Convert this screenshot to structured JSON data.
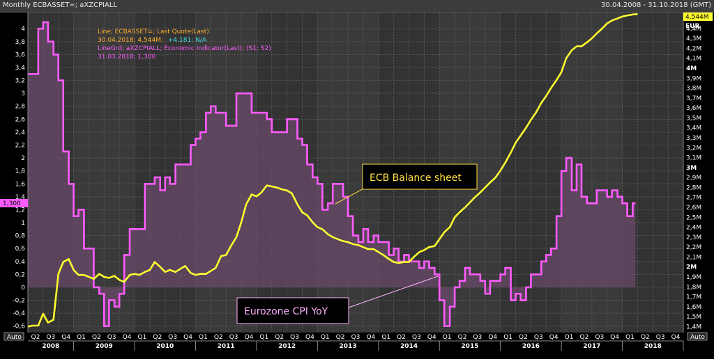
{
  "header": {
    "title": "Monthly ECBASSET=; aXZCPIALL",
    "date_range": "30.04.2008 - 31.10.2018 (GMT)"
  },
  "legend": {
    "line1": "Line; ECBASSET=; Last Quote(Last)",
    "line2_date": "30.04.2018; 4,544M;",
    "line2_change": "+4.181; N/A",
    "line3": "LineGrd; aXZCPIALL; Economic Indicator(Last); (S1; S2)",
    "line4": "31.03.2018; 1,300"
  },
  "badges": {
    "left_value": "1,300",
    "right_value": "4,544M",
    "right_unit": "EUR",
    "auto_left": "Auto",
    "auto_right": "Auto"
  },
  "annotations": {
    "ecb": "ECB Balance sheet",
    "cpi": "Eurozone CPI YoY"
  },
  "colors": {
    "background": "#000000",
    "plot_bg": "#3a3a3a",
    "band_dark": "#333333",
    "grid": "#5a5a5a",
    "cpi_line": "#ff5cff",
    "cpi_fill": "#6a4a6a",
    "ecb_line": "#ffff30",
    "legend_orange": "#ffb02e",
    "legend_cyan": "#40e0e0",
    "legend_magenta": "#ff5cff"
  },
  "chart_data": {
    "type": "line",
    "x_axis": {
      "quarters": [
        "Q2",
        "Q3",
        "Q4",
        "Q1",
        "Q2",
        "Q3",
        "Q4",
        "Q1",
        "Q2",
        "Q3",
        "Q4",
        "Q1",
        "Q2",
        "Q3",
        "Q4",
        "Q1",
        "Q2",
        "Q3",
        "Q4",
        "Q1",
        "Q2",
        "Q3",
        "Q4",
        "Q1",
        "Q2",
        "Q3",
        "Q4",
        "Q1",
        "Q2",
        "Q3",
        "Q4",
        "Q1",
        "Q2",
        "Q3",
        "Q4",
        "Q1",
        "Q2",
        "Q3",
        "Q4",
        "Q1",
        "Q2",
        "Q3",
        "Q4"
      ],
      "years": [
        "2008",
        "2009",
        "2010",
        "2011",
        "2012",
        "2013",
        "2014",
        "2015",
        "2016",
        "2017",
        "2018"
      ],
      "start": "2008-Q2",
      "end": "2018-Q4"
    },
    "left_axis": {
      "range": [
        -0.7,
        4.25
      ],
      "ticks": [
        "-0,6",
        "-0,4",
        "-0,2",
        "0",
        "0,2",
        "0,4",
        "0,6",
        "0,8",
        "1",
        "1,2",
        "1,4",
        "1,6",
        "1,8",
        "2",
        "2,2",
        "2,4",
        "2,6",
        "2,8",
        "3",
        "3,2",
        "3,4",
        "3,6",
        "3,8",
        "4"
      ],
      "tick_values": [
        -0.6,
        -0.4,
        -0.2,
        0,
        0.2,
        0.4,
        0.6,
        0.8,
        1,
        1.2,
        1.4,
        1.6,
        1.8,
        2,
        2.2,
        2.4,
        2.6,
        2.8,
        3,
        3.2,
        3.4,
        3.6,
        3.8,
        4
      ]
    },
    "right_axis": {
      "unit": "EUR",
      "range": [
        1.34,
        4.56
      ],
      "ticks": [
        "1,4M",
        "1,5M",
        "1,6M",
        "1,7M",
        "1,8M",
        "1,9M",
        "2M",
        "2,1M",
        "2,2M",
        "2,3M",
        "2,4M",
        "2,5M",
        "2,6M",
        "2,7M",
        "2,8M",
        "2,9M",
        "3M",
        "3,1M",
        "3,2M",
        "3,3M",
        "3,4M",
        "3,5M",
        "3,6M",
        "3,7M",
        "3,8M",
        "3,9M",
        "4M",
        "4,1M",
        "4,2M",
        "4,3M",
        "4,4M"
      ],
      "tick_values": [
        1.4,
        1.5,
        1.6,
        1.7,
        1.8,
        1.9,
        2.0,
        2.1,
        2.2,
        2.3,
        2.4,
        2.5,
        2.6,
        2.7,
        2.8,
        2.9,
        3.0,
        3.1,
        3.2,
        3.3,
        3.4,
        3.5,
        3.6,
        3.7,
        3.8,
        3.9,
        4.0,
        4.1,
        4.2,
        4.3,
        4.4
      ],
      "bold_ticks": [
        "2M",
        "3M",
        "4M"
      ]
    },
    "series": [
      {
        "name": "Eurozone CPI YoY",
        "axis": "left",
        "style": "step-area",
        "t": [
          2008.25,
          2008.42,
          2008.5,
          2008.58,
          2008.67,
          2008.75,
          2008.83,
          2008.92,
          2009.0,
          2009.08,
          2009.17,
          2009.25,
          2009.33,
          2009.42,
          2009.5,
          2009.58,
          2009.67,
          2009.75,
          2009.83,
          2009.92,
          2010.0,
          2010.08,
          2010.17,
          2010.25,
          2010.33,
          2010.42,
          2010.5,
          2010.58,
          2010.67,
          2010.75,
          2010.83,
          2010.92,
          2011.0,
          2011.08,
          2011.17,
          2011.25,
          2011.33,
          2011.42,
          2011.5,
          2011.58,
          2011.67,
          2011.75,
          2011.83,
          2011.92,
          2012.0,
          2012.08,
          2012.17,
          2012.25,
          2012.33,
          2012.42,
          2012.5,
          2012.58,
          2012.67,
          2012.75,
          2012.83,
          2012.92,
          2013.0,
          2013.08,
          2013.17,
          2013.25,
          2013.33,
          2013.42,
          2013.5,
          2013.58,
          2013.67,
          2013.75,
          2013.83,
          2013.92,
          2014.0,
          2014.08,
          2014.17,
          2014.25,
          2014.33,
          2014.42,
          2014.5,
          2014.58,
          2014.67,
          2014.75,
          2014.83,
          2014.92,
          2015.0,
          2015.08,
          2015.17,
          2015.25,
          2015.33,
          2015.42,
          2015.5,
          2015.58,
          2015.67,
          2015.75,
          2015.83,
          2015.92,
          2016.0,
          2016.08,
          2016.17,
          2016.25,
          2016.33,
          2016.42,
          2016.5,
          2016.58,
          2016.67,
          2016.75,
          2016.83,
          2016.92,
          2017.0,
          2017.08,
          2017.17,
          2017.25,
          2017.33,
          2017.42,
          2017.5,
          2017.58,
          2017.67,
          2017.75,
          2017.83,
          2017.92,
          2018.0,
          2018.08,
          2018.17
        ],
        "values": [
          3.3,
          4.0,
          4.1,
          3.8,
          3.6,
          3.2,
          2.1,
          1.6,
          1.1,
          1.2,
          0.6,
          0.6,
          0.0,
          -0.1,
          -0.6,
          -0.2,
          -0.3,
          -0.1,
          0.5,
          0.9,
          0.9,
          0.9,
          1.6,
          1.6,
          1.7,
          1.5,
          1.7,
          1.6,
          1.9,
          1.9,
          1.9,
          2.2,
          2.3,
          2.4,
          2.7,
          2.8,
          2.7,
          2.7,
          2.5,
          2.5,
          3.0,
          3.0,
          3.0,
          2.7,
          2.7,
          2.7,
          2.6,
          2.4,
          2.4,
          2.4,
          2.6,
          2.6,
          2.3,
          2.2,
          1.9,
          1.7,
          1.6,
          1.2,
          1.3,
          1.6,
          1.6,
          1.4,
          1.1,
          0.8,
          0.7,
          0.9,
          0.7,
          0.8,
          0.7,
          0.7,
          0.5,
          0.6,
          0.4,
          0.5,
          0.4,
          0.4,
          0.3,
          0.4,
          0.3,
          0.2,
          -0.2,
          -0.6,
          -0.3,
          0.0,
          0.1,
          0.3,
          0.2,
          0.2,
          0.1,
          -0.1,
          0.1,
          0.1,
          0.2,
          0.3,
          -0.2,
          -0.1,
          -0.2,
          0.0,
          0.2,
          0.2,
          0.4,
          0.5,
          0.6,
          1.1,
          1.8,
          2.0,
          1.5,
          1.9,
          1.4,
          1.3,
          1.3,
          1.5,
          1.5,
          1.4,
          1.5,
          1.4,
          1.3,
          1.1,
          1.3
        ]
      },
      {
        "name": "ECB Balance sheet",
        "axis": "right",
        "style": "line",
        "t": [
          2008.25,
          2008.33,
          2008.42,
          2008.5,
          2008.58,
          2008.67,
          2008.75,
          2008.83,
          2008.92,
          2009.0,
          2009.08,
          2009.17,
          2009.25,
          2009.33,
          2009.42,
          2009.5,
          2009.58,
          2009.67,
          2009.75,
          2009.83,
          2009.92,
          2010.0,
          2010.08,
          2010.17,
          2010.25,
          2010.33,
          2010.42,
          2010.5,
          2010.58,
          2010.67,
          2010.75,
          2010.83,
          2010.92,
          2011.0,
          2011.08,
          2011.17,
          2011.25,
          2011.33,
          2011.42,
          2011.5,
          2011.58,
          2011.67,
          2011.75,
          2011.83,
          2011.92,
          2012.0,
          2012.08,
          2012.17,
          2012.25,
          2012.33,
          2012.42,
          2012.5,
          2012.58,
          2012.67,
          2012.75,
          2012.83,
          2012.92,
          2013.0,
          2013.08,
          2013.17,
          2013.25,
          2013.33,
          2013.42,
          2013.5,
          2013.58,
          2013.67,
          2013.75,
          2013.83,
          2013.92,
          2014.0,
          2014.08,
          2014.17,
          2014.25,
          2014.33,
          2014.42,
          2014.5,
          2014.58,
          2014.67,
          2014.75,
          2014.83,
          2014.92,
          2015.0,
          2015.08,
          2015.17,
          2015.25,
          2015.33,
          2015.42,
          2015.5,
          2015.58,
          2015.67,
          2015.75,
          2015.83,
          2015.92,
          2016.0,
          2016.08,
          2016.17,
          2016.25,
          2016.33,
          2016.42,
          2016.5,
          2016.58,
          2016.67,
          2016.75,
          2016.83,
          2016.92,
          2017.0,
          2017.08,
          2017.17,
          2017.25,
          2017.33,
          2017.42,
          2017.5,
          2017.58,
          2017.67,
          2017.75,
          2017.83,
          2017.92,
          2018.0,
          2018.08,
          2018.17,
          2018.25
        ],
        "values": [
          1.4,
          1.41,
          1.41,
          1.53,
          1.44,
          1.47,
          1.93,
          2.05,
          2.08,
          1.97,
          1.92,
          1.92,
          1.9,
          1.88,
          1.93,
          1.9,
          1.89,
          1.91,
          1.87,
          1.85,
          1.92,
          1.93,
          1.92,
          1.95,
          1.97,
          2.05,
          2.0,
          1.95,
          1.97,
          1.95,
          1.98,
          2.01,
          1.94,
          1.92,
          1.93,
          1.93,
          1.96,
          1.99,
          2.11,
          2.12,
          2.21,
          2.3,
          2.45,
          2.63,
          2.73,
          2.71,
          2.75,
          2.82,
          2.81,
          2.8,
          2.78,
          2.77,
          2.74,
          2.63,
          2.55,
          2.52,
          2.45,
          2.4,
          2.38,
          2.33,
          2.3,
          2.28,
          2.26,
          2.25,
          2.23,
          2.22,
          2.2,
          2.18,
          2.18,
          2.15,
          2.12,
          2.08,
          2.05,
          2.04,
          2.05,
          2.05,
          2.1,
          2.15,
          2.17,
          2.2,
          2.21,
          2.28,
          2.35,
          2.4,
          2.5,
          2.55,
          2.6,
          2.65,
          2.7,
          2.75,
          2.8,
          2.85,
          2.9,
          2.97,
          3.05,
          3.15,
          3.25,
          3.32,
          3.4,
          3.48,
          3.55,
          3.65,
          3.72,
          3.8,
          3.88,
          3.96,
          4.1,
          4.18,
          4.22,
          4.22,
          4.26,
          4.3,
          4.35,
          4.4,
          4.45,
          4.48,
          4.5,
          4.52,
          4.53,
          4.54,
          4.544
        ]
      }
    ],
    "ylabel": "",
    "xlabel": "",
    "legend_position": "top-left",
    "grid": true
  }
}
